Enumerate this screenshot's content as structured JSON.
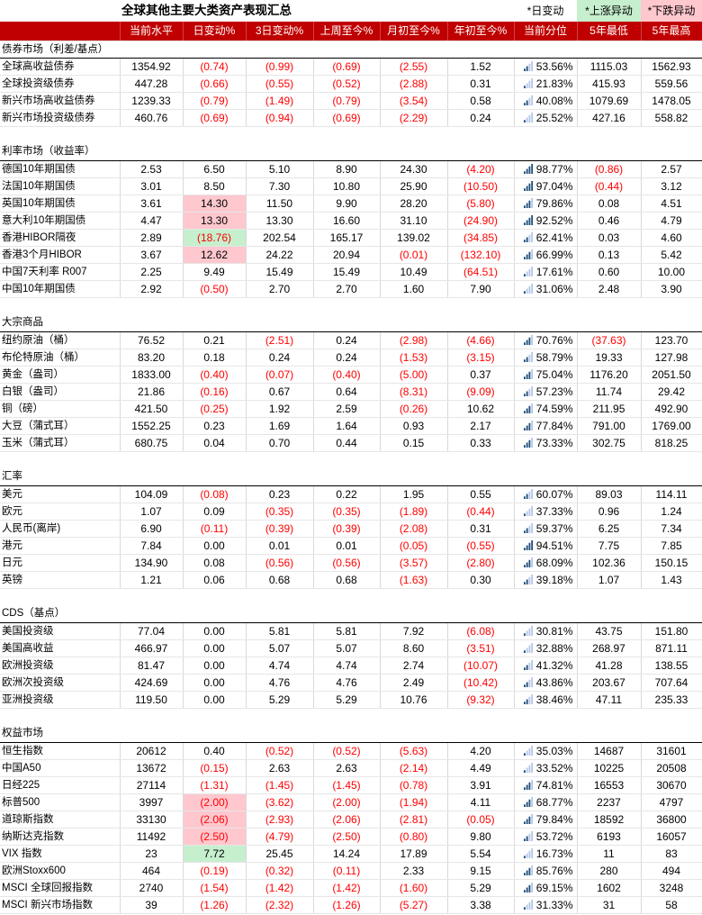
{
  "title": "全球其他主要大类资产表现汇总",
  "legend": {
    "day": "*日变动",
    "up": "*上涨异动",
    "down": "*下跌异动"
  },
  "headers": [
    "当前水平",
    "日变动%",
    "3日变动%",
    "上周至今%",
    "月初至今%",
    "年初至今%",
    "当前分位",
    "5年最低",
    "5年最高"
  ],
  "colors": {
    "header_bg": "#c00000",
    "up_bg": "#c6efce",
    "down_bg": "#ffc7ce",
    "neg_text": "#ff0000"
  },
  "sections": [
    {
      "name": "债券市场（利差/基点）",
      "rows": [
        {
          "name": "全球高收益债券",
          "cells": [
            "1354.92",
            "(0.74)",
            "(0.99)",
            "(0.69)",
            "(2.55)",
            "1.52",
            "53.56%",
            "1115.03",
            "1562.93"
          ],
          "pct": 0.5356
        },
        {
          "name": "全球投资级债券",
          "cells": [
            "447.28",
            "(0.66)",
            "(0.55)",
            "(0.52)",
            "(2.88)",
            "0.31",
            "21.83%",
            "415.93",
            "559.56"
          ],
          "pct": 0.2183
        },
        {
          "name": "新兴市场高收益债券",
          "cells": [
            "1239.33",
            "(0.79)",
            "(1.49)",
            "(0.79)",
            "(3.54)",
            "0.58",
            "40.08%",
            "1079.69",
            "1478.05"
          ],
          "pct": 0.4008
        },
        {
          "name": "新兴市场投资级债券",
          "cells": [
            "460.76",
            "(0.69)",
            "(0.94)",
            "(0.69)",
            "(2.29)",
            "0.24",
            "25.52%",
            "427.16",
            "558.82"
          ],
          "pct": 0.2552
        }
      ]
    },
    {
      "name": "利率市场（收益率）",
      "rows": [
        {
          "name": "德国10年期国债",
          "cells": [
            "2.53",
            "6.50",
            "5.10",
            "8.90",
            "24.30",
            "(4.20)",
            "98.77%",
            "(0.86)",
            "2.57"
          ],
          "pct": 0.9877
        },
        {
          "name": "法国10年期国债",
          "cells": [
            "3.01",
            "8.50",
            "7.30",
            "10.80",
            "25.90",
            "(10.50)",
            "97.04%",
            "(0.44)",
            "3.12"
          ],
          "pct": 0.9704
        },
        {
          "name": "英国10年期国债",
          "cells": [
            "3.61",
            "14.30",
            "11.50",
            "9.90",
            "28.20",
            "(5.80)",
            "79.86%",
            "0.08",
            "4.51"
          ],
          "pct": 0.7986,
          "hl": "down"
        },
        {
          "name": "意大利10年期国债",
          "cells": [
            "4.47",
            "13.30",
            "13.30",
            "16.60",
            "31.10",
            "(24.90)",
            "92.52%",
            "0.46",
            "4.79"
          ],
          "pct": 0.9252,
          "hl": "down"
        },
        {
          "name": "香港HIBOR隔夜",
          "cells": [
            "2.89",
            "(18.76)",
            "202.54",
            "165.17",
            "139.02",
            "(34.85)",
            "62.41%",
            "0.03",
            "4.60"
          ],
          "pct": 0.6241,
          "hl": "up"
        },
        {
          "name": "香港3个月HIBOR",
          "cells": [
            "3.67",
            "12.62",
            "24.22",
            "20.94",
            "(0.01)",
            "(132.10)",
            "66.99%",
            "0.13",
            "5.42"
          ],
          "pct": 0.6699,
          "hl": "down"
        },
        {
          "name": "中国7天利率 R007",
          "cells": [
            "2.25",
            "9.49",
            "15.49",
            "15.49",
            "10.49",
            "(64.51)",
            "17.61%",
            "0.60",
            "10.00"
          ],
          "pct": 0.1761
        },
        {
          "name": "中国10年期国债",
          "cells": [
            "2.92",
            "(0.50)",
            "2.70",
            "2.70",
            "1.60",
            "7.90",
            "31.06%",
            "2.48",
            "3.90"
          ],
          "pct": 0.3106
        }
      ]
    },
    {
      "name": "大宗商品",
      "rows": [
        {
          "name": "纽约原油（桶）",
          "cells": [
            "76.52",
            "0.21",
            "(2.51)",
            "0.24",
            "(2.98)",
            "(4.66)",
            "70.76%",
            "(37.63)",
            "123.70"
          ],
          "pct": 0.7076
        },
        {
          "name": "布伦特原油（桶）",
          "cells": [
            "83.20",
            "0.18",
            "0.24",
            "0.24",
            "(1.53)",
            "(3.15)",
            "58.79%",
            "19.33",
            "127.98"
          ],
          "pct": 0.5879
        },
        {
          "name": "黄金（盎司）",
          "cells": [
            "1833.00",
            "(0.40)",
            "(0.07)",
            "(0.40)",
            "(5.00)",
            "0.37",
            "75.04%",
            "1176.20",
            "2051.50"
          ],
          "pct": 0.7504
        },
        {
          "name": "白银（盎司）",
          "cells": [
            "21.86",
            "(0.16)",
            "0.67",
            "0.64",
            "(8.31)",
            "(9.09)",
            "57.23%",
            "11.74",
            "29.42"
          ],
          "pct": 0.5723
        },
        {
          "name": "铜（磅）",
          "cells": [
            "421.50",
            "(0.25)",
            "1.92",
            "2.59",
            "(0.26)",
            "10.62",
            "74.59%",
            "211.95",
            "492.90"
          ],
          "pct": 0.7459
        },
        {
          "name": "大豆（蒲式耳）",
          "cells": [
            "1552.25",
            "0.23",
            "1.69",
            "1.64",
            "0.93",
            "2.17",
            "77.84%",
            "791.00",
            "1769.00"
          ],
          "pct": 0.7784
        },
        {
          "name": "玉米（蒲式耳）",
          "cells": [
            "680.75",
            "0.04",
            "0.70",
            "0.44",
            "0.15",
            "0.33",
            "73.33%",
            "302.75",
            "818.25"
          ],
          "pct": 0.7333
        }
      ]
    },
    {
      "name": "汇率",
      "rows": [
        {
          "name": "美元",
          "cells": [
            "104.09",
            "(0.08)",
            "0.23",
            "0.22",
            "1.95",
            "0.55",
            "60.07%",
            "89.03",
            "114.11"
          ],
          "pct": 0.6007
        },
        {
          "name": "欧元",
          "cells": [
            "1.07",
            "0.09",
            "(0.35)",
            "(0.35)",
            "(1.89)",
            "(0.44)",
            "37.33%",
            "0.96",
            "1.24"
          ],
          "pct": 0.3733
        },
        {
          "name": "人民币(离岸)",
          "cells": [
            "6.90",
            "(0.11)",
            "(0.39)",
            "(0.39)",
            "(2.08)",
            "0.31",
            "59.37%",
            "6.25",
            "7.34"
          ],
          "pct": 0.5937
        },
        {
          "name": "港元",
          "cells": [
            "7.84",
            "0.00",
            "0.01",
            "0.01",
            "(0.05)",
            "(0.55)",
            "94.51%",
            "7.75",
            "7.85"
          ],
          "pct": 0.9451
        },
        {
          "name": "日元",
          "cells": [
            "134.90",
            "0.08",
            "(0.56)",
            "(0.56)",
            "(3.57)",
            "(2.80)",
            "68.09%",
            "102.36",
            "150.15"
          ],
          "pct": 0.6809
        },
        {
          "name": "英镑",
          "cells": [
            "1.21",
            "0.06",
            "0.68",
            "0.68",
            "(1.63)",
            "0.30",
            "39.18%",
            "1.07",
            "1.43"
          ],
          "pct": 0.3918
        }
      ]
    },
    {
      "name": "CDS（基点）",
      "rows": [
        {
          "name": "美国投资级",
          "cells": [
            "77.04",
            "0.00",
            "5.81",
            "5.81",
            "7.92",
            "(6.08)",
            "30.81%",
            "43.75",
            "151.80"
          ],
          "pct": 0.3081
        },
        {
          "name": "美国高收益",
          "cells": [
            "466.97",
            "0.00",
            "5.07",
            "5.07",
            "8.60",
            "(3.51)",
            "32.88%",
            "268.97",
            "871.11"
          ],
          "pct": 0.3288
        },
        {
          "name": "欧洲投资级",
          "cells": [
            "81.47",
            "0.00",
            "4.74",
            "4.74",
            "2.74",
            "(10.07)",
            "41.32%",
            "41.28",
            "138.55"
          ],
          "pct": 0.4132
        },
        {
          "name": "欧洲次投资级",
          "cells": [
            "424.69",
            "0.00",
            "4.76",
            "4.76",
            "2.49",
            "(10.42)",
            "43.86%",
            "203.67",
            "707.64"
          ],
          "pct": 0.4386
        },
        {
          "name": "亚洲投资级",
          "cells": [
            "119.50",
            "0.00",
            "5.29",
            "5.29",
            "10.76",
            "(9.32)",
            "38.46%",
            "47.11",
            "235.33"
          ],
          "pct": 0.3846
        }
      ]
    },
    {
      "name": "权益市场",
      "rows": [
        {
          "name": "恒生指数",
          "cells": [
            "20612",
            "0.40",
            "(0.52)",
            "(0.52)",
            "(5.63)",
            "4.20",
            "35.03%",
            "14687",
            "31601"
          ],
          "pct": 0.3503
        },
        {
          "name": "中国A50",
          "cells": [
            "13672",
            "(0.15)",
            "2.63",
            "2.63",
            "(2.14)",
            "4.49",
            "33.52%",
            "10225",
            "20508"
          ],
          "pct": 0.3352
        },
        {
          "name": "日经225",
          "cells": [
            "27114",
            "(1.31)",
            "(1.45)",
            "(1.45)",
            "(0.78)",
            "3.91",
            "74.81%",
            "16553",
            "30670"
          ],
          "pct": 0.7481
        },
        {
          "name": "标普500",
          "cells": [
            "3997",
            "(2.00)",
            "(3.62)",
            "(2.00)",
            "(1.94)",
            "4.11",
            "68.77%",
            "2237",
            "4797"
          ],
          "pct": 0.6877,
          "hl": "down"
        },
        {
          "name": "道琼斯指数",
          "cells": [
            "33130",
            "(2.06)",
            "(2.93)",
            "(2.06)",
            "(2.81)",
            "(0.05)",
            "79.84%",
            "18592",
            "36800"
          ],
          "pct": 0.7984,
          "hl": "down"
        },
        {
          "name": "纳斯达克指数",
          "cells": [
            "11492",
            "(2.50)",
            "(4.79)",
            "(2.50)",
            "(0.80)",
            "9.80",
            "53.72%",
            "6193",
            "16057"
          ],
          "pct": 0.5372,
          "hl": "down"
        },
        {
          "name": "VIX 指数",
          "cells": [
            "23",
            "7.72",
            "25.45",
            "14.24",
            "17.89",
            "5.54",
            "16.73%",
            "11",
            "83"
          ],
          "pct": 0.1673,
          "hl": "up"
        },
        {
          "name": "欧洲Stoxx600",
          "cells": [
            "464",
            "(0.19)",
            "(0.32)",
            "(0.11)",
            "2.33",
            "9.15",
            "85.76%",
            "280",
            "494"
          ],
          "pct": 0.8576
        },
        {
          "name": "MSCI 全球回报指数",
          "cells": [
            "2740",
            "(1.54)",
            "(1.42)",
            "(1.42)",
            "(1.60)",
            "5.29",
            "69.15%",
            "1602",
            "3248"
          ],
          "pct": 0.6915
        },
        {
          "name": "MSCI 新兴市场指数",
          "cells": [
            "39",
            "(1.26)",
            "(2.32)",
            "(1.26)",
            "(5.27)",
            "3.38",
            "31.33%",
            "31",
            "58"
          ],
          "pct": 0.3133
        }
      ]
    }
  ]
}
